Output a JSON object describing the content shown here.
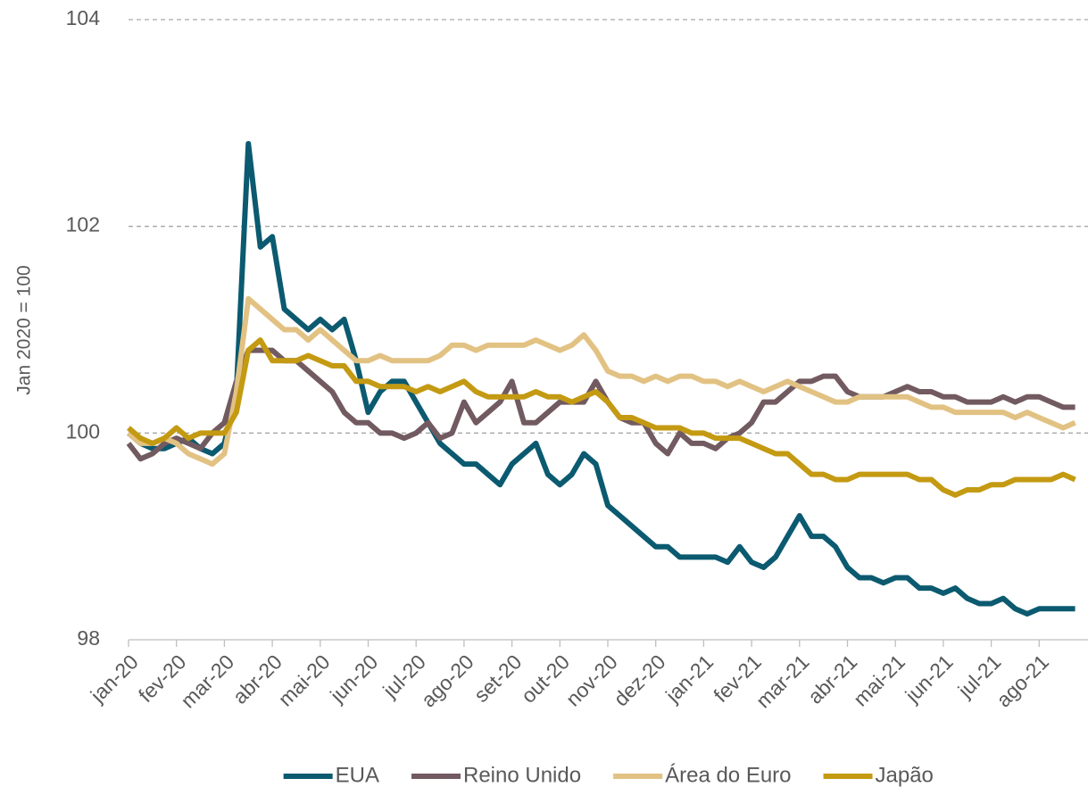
{
  "chart_data": {
    "type": "line",
    "y_label": "Jan 2020 = 100",
    "categories": [
      "jan-20",
      null,
      null,
      null,
      "fev-20",
      null,
      null,
      null,
      "mar-20",
      null,
      null,
      null,
      "abr-20",
      null,
      null,
      null,
      "mai-20",
      null,
      null,
      null,
      "jun-20",
      null,
      null,
      null,
      "jul-20",
      null,
      null,
      null,
      "ago-20",
      null,
      null,
      null,
      "set-20",
      null,
      null,
      null,
      "out-20",
      null,
      null,
      null,
      "nov-20",
      null,
      null,
      null,
      "dez-20",
      null,
      null,
      null,
      "jan-21",
      null,
      null,
      null,
      "fev-21",
      null,
      null,
      null,
      "mar-21",
      null,
      null,
      null,
      "abr-21",
      null,
      null,
      null,
      "mai-21",
      null,
      null,
      null,
      "jun-21",
      null,
      null,
      null,
      "jul-21",
      null,
      null,
      null,
      "ago-21",
      null,
      null,
      null
    ],
    "series": [
      {
        "name": "EUA",
        "color": "#0b5a70",
        "values": [
          100,
          99.9,
          99.85,
          99.85,
          99.9,
          99.95,
          99.85,
          99.8,
          99.9,
          100.4,
          102.8,
          101.8,
          101.9,
          101.2,
          101.1,
          101.0,
          101.1,
          101.0,
          101.1,
          100.7,
          100.2,
          100.4,
          100.5,
          100.5,
          100.3,
          100.1,
          99.9,
          99.8,
          99.7,
          99.7,
          99.6,
          99.5,
          99.7,
          99.8,
          99.9,
          99.6,
          99.5,
          99.6,
          99.8,
          99.7,
          99.3,
          99.2,
          99.1,
          99.0,
          98.9,
          98.9,
          98.8,
          98.8,
          98.8,
          98.8,
          98.75,
          98.9,
          98.75,
          98.7,
          98.8,
          99.0,
          99.2,
          99.0,
          99.0,
          98.9,
          98.7,
          98.6,
          98.6,
          98.55,
          98.6,
          98.6,
          98.5,
          98.5,
          98.45,
          98.5,
          98.4,
          98.35,
          98.35,
          98.4,
          98.3,
          98.25,
          98.3,
          98.3,
          98.3,
          98.3
        ]
      },
      {
        "name": "Reino Unido",
        "color": "#715a60",
        "values": [
          99.9,
          99.75,
          99.8,
          99.9,
          99.95,
          99.9,
          99.85,
          100.0,
          100.1,
          100.5,
          100.8,
          100.8,
          100.8,
          100.7,
          100.7,
          100.6,
          100.5,
          100.4,
          100.2,
          100.1,
          100.1,
          100.0,
          100.0,
          99.95,
          100.0,
          100.1,
          99.95,
          100.0,
          100.3,
          100.1,
          100.2,
          100.3,
          100.5,
          100.1,
          100.1,
          100.2,
          100.3,
          100.3,
          100.3,
          100.5,
          100.3,
          100.15,
          100.1,
          100.1,
          99.9,
          99.8,
          100.0,
          99.9,
          99.9,
          99.85,
          99.95,
          100.0,
          100.1,
          100.3,
          100.3,
          100.4,
          100.5,
          100.5,
          100.55,
          100.55,
          100.4,
          100.35,
          100.35,
          100.35,
          100.4,
          100.45,
          100.4,
          100.4,
          100.35,
          100.35,
          100.3,
          100.3,
          100.3,
          100.35,
          100.3,
          100.35,
          100.35,
          100.3,
          100.25,
          100.25
        ]
      },
      {
        "name": "Área do Euro",
        "color": "#e2c283",
        "values": [
          100.0,
          99.9,
          99.9,
          99.95,
          99.9,
          99.8,
          99.75,
          99.7,
          99.8,
          100.4,
          101.3,
          101.2,
          101.1,
          101.0,
          101.0,
          100.9,
          101.0,
          100.9,
          100.8,
          100.7,
          100.7,
          100.75,
          100.7,
          100.7,
          100.7,
          100.7,
          100.75,
          100.85,
          100.85,
          100.8,
          100.85,
          100.85,
          100.85,
          100.85,
          100.9,
          100.85,
          100.8,
          100.85,
          100.95,
          100.8,
          100.6,
          100.55,
          100.55,
          100.5,
          100.55,
          100.5,
          100.55,
          100.55,
          100.5,
          100.5,
          100.45,
          100.5,
          100.45,
          100.4,
          100.45,
          100.5,
          100.45,
          100.4,
          100.35,
          100.3,
          100.3,
          100.35,
          100.35,
          100.35,
          100.35,
          100.35,
          100.3,
          100.25,
          100.25,
          100.2,
          100.2,
          100.2,
          100.2,
          100.2,
          100.15,
          100.2,
          100.15,
          100.1,
          100.05,
          100.1
        ]
      },
      {
        "name": "Japão",
        "color": "#c49a12",
        "values": [
          100.05,
          99.95,
          99.9,
          99.95,
          100.05,
          99.95,
          100.0,
          100.0,
          100.0,
          100.2,
          100.8,
          100.9,
          100.7,
          100.7,
          100.7,
          100.75,
          100.7,
          100.65,
          100.65,
          100.5,
          100.5,
          100.45,
          100.45,
          100.45,
          100.4,
          100.45,
          100.4,
          100.45,
          100.5,
          100.4,
          100.35,
          100.35,
          100.35,
          100.35,
          100.4,
          100.35,
          100.35,
          100.3,
          100.35,
          100.4,
          100.3,
          100.15,
          100.15,
          100.1,
          100.05,
          100.05,
          100.05,
          100.0,
          100.0,
          99.95,
          99.95,
          99.95,
          99.9,
          99.85,
          99.8,
          99.8,
          99.7,
          99.6,
          99.6,
          99.55,
          99.55,
          99.6,
          99.6,
          99.6,
          99.6,
          99.6,
          99.55,
          99.55,
          99.45,
          99.4,
          99.45,
          99.45,
          99.5,
          99.5,
          99.55,
          99.55,
          99.55,
          99.55,
          99.6,
          99.55
        ]
      }
    ],
    "ylim": [
      98,
      104
    ],
    "yticks": [
      98,
      100,
      102,
      104
    ],
    "grid": true,
    "legend": "bottom"
  }
}
